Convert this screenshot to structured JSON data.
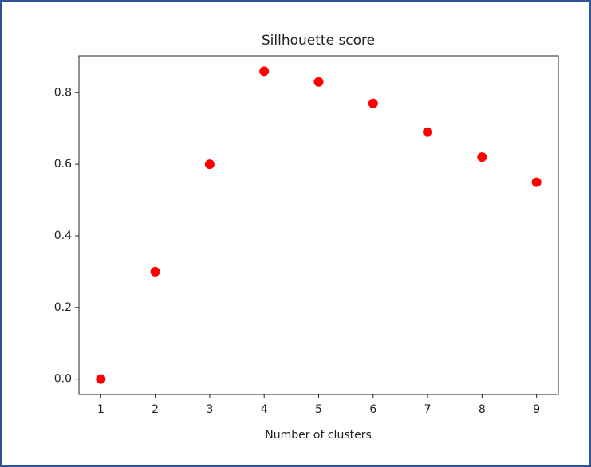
{
  "chart_data": {
    "type": "scatter",
    "title": "Sillhouette score",
    "x_label": "Number of clusters",
    "x": [
      1,
      2,
      3,
      4,
      5,
      6,
      7,
      8,
      9
    ],
    "series": [
      {
        "color": "#ff0000",
        "values": [
          0,
          0.3,
          0.6,
          0.86,
          0.83,
          0.77,
          0.69,
          0.62,
          0.55
        ]
      }
    ],
    "xlim": [
      0.6,
      9.4
    ],
    "xticks": [
      1,
      2,
      3,
      4,
      5,
      6,
      7,
      8,
      9
    ],
    "ylim": [
      -0.043,
      0.903
    ],
    "yticks": [
      {
        "value": 0,
        "label": "0.0"
      },
      0.2,
      0.4,
      0.6,
      0.8
    ]
  }
}
